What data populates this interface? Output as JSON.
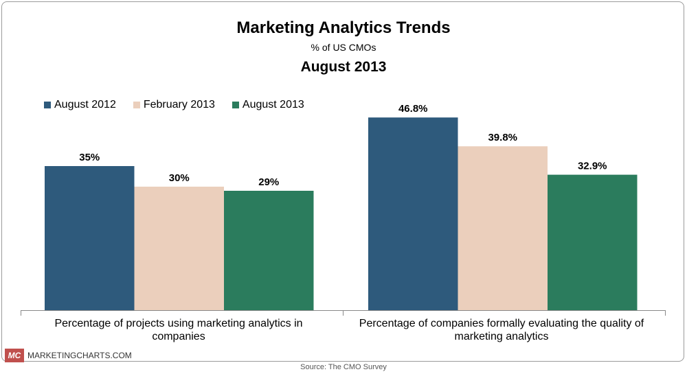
{
  "header": {
    "title": "Marketing Analytics Trends",
    "subtitle": "% of US CMOs",
    "date": "August 2013"
  },
  "colors": {
    "series": [
      "#2e5a7c",
      "#ebcfbc",
      "#2b7c5d"
    ],
    "axis": "#888888"
  },
  "footer": {
    "logo": "MC",
    "brand": "MARKETINGCHARTS.COM",
    "source": "Source: The CMO Survey"
  },
  "chart_data": {
    "type": "bar",
    "title": "Marketing Analytics Trends",
    "subtitle": "% of US CMOs",
    "categories": [
      "Percentage of projects using marketing analytics in companies",
      "Percentage of companies formally evaluating the quality of marketing analytics"
    ],
    "series": [
      {
        "name": "August 2012",
        "values": [
          35,
          46.8
        ],
        "labels": [
          "35%",
          "46.8%"
        ]
      },
      {
        "name": "February 2013",
        "values": [
          30,
          39.8
        ],
        "labels": [
          "30%",
          "39.8%"
        ]
      },
      {
        "name": "August 2013",
        "values": [
          29,
          32.9
        ],
        "labels": [
          "29%",
          "32.9%"
        ]
      }
    ],
    "ylim": [
      0,
      60
    ],
    "grid": false,
    "legend_position": "top-left"
  }
}
